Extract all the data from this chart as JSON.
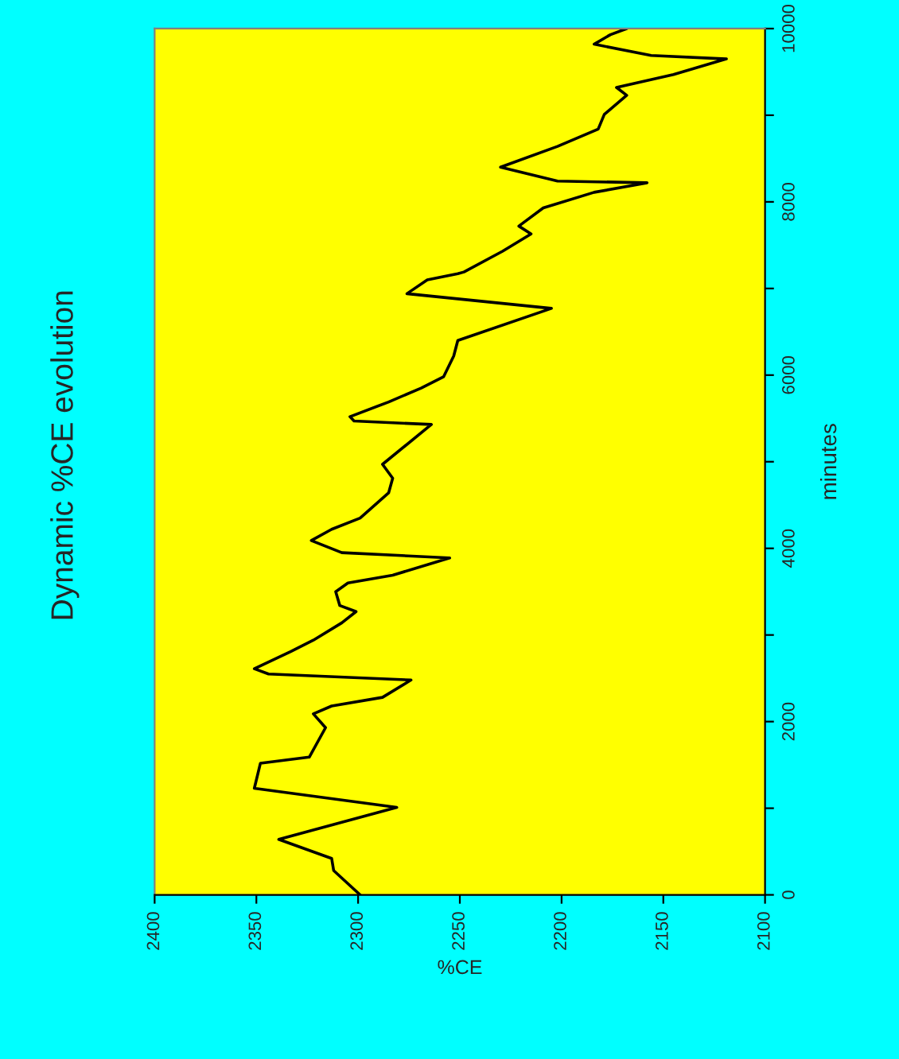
{
  "chart_data": {
    "type": "line",
    "title": "Dynamic %CE evolution",
    "xlabel": "%CE",
    "ylabel": "minutes",
    "series": [
      {
        "color": "#000000",
        "x": [
          2299,
          2312,
          2313,
          2339,
          2281,
          2351,
          2348,
          2324,
          2316,
          2322,
          2313,
          2288,
          2274,
          2344,
          2351,
          2333,
          2322,
          2308,
          2301,
          2309,
          2311,
          2305,
          2283,
          2255,
          2308,
          2323,
          2313,
          2299,
          2285,
          2283,
          2288,
          2264,
          2302,
          2304,
          2285,
          2269,
          2258,
          2253,
          2251,
          2205,
          2276,
          2266,
          2251,
          2248,
          2229,
          2215,
          2221,
          2209,
          2184,
          2158,
          2202,
          2230,
          2202,
          2182,
          2179,
          2168,
          2173,
          2145,
          2119,
          2156,
          2184,
          2176,
          2168
        ],
        "values": [
          0,
          280,
          420,
          640,
          1010,
          1230,
          1520,
          1590,
          1930,
          2090,
          2180,
          2280,
          2480,
          2550,
          2610,
          2810,
          2940,
          3140,
          3270,
          3340,
          3500,
          3600,
          3690,
          3890,
          3950,
          4090,
          4220,
          4350,
          4640,
          4810,
          4970,
          5430,
          5470,
          5520,
          5690,
          5850,
          5980,
          6220,
          6400,
          6770,
          6940,
          7100,
          7170,
          7190,
          7430,
          7630,
          7720,
          7930,
          8110,
          8220,
          8240,
          8400,
          8640,
          8840,
          9010,
          9230,
          9320,
          9470,
          9650,
          9690,
          9820,
          9930,
          10000
        ]
      }
    ],
    "ylim": [
      0,
      10000
    ],
    "yticks": [
      0,
      {
        "value": 1000,
        "label": null
      },
      2000,
      {
        "value": 3000,
        "label": null
      },
      4000,
      {
        "value": 5000,
        "label": null
      },
      6000,
      {
        "value": 7000,
        "label": null
      },
      8000,
      {
        "value": 9000,
        "label": null
      },
      10000
    ],
    "xlim": [
      2400,
      2100
    ],
    "xticks": [
      2400,
      2350,
      2300,
      2250,
      2200,
      2150,
      2100
    ],
    "grid": false,
    "legend": false
  }
}
